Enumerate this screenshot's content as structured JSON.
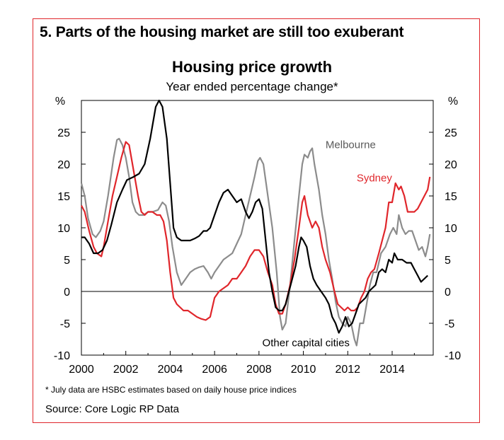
{
  "panel_title": "5. Parts of the housing market are still too exuberant",
  "footnote": "* July data are HSBC estimates based on daily house price indices",
  "source": "Source: Core Logic RP Data",
  "colors": {
    "frame": "#e0262b",
    "sydney": "#e0262b",
    "melbourne": "#8c8c8c",
    "other": "#000000"
  },
  "chart_data": {
    "type": "line",
    "title": "Housing price growth",
    "subtitle": "Year ended percentage change*",
    "y_unit_left": "%",
    "y_unit_right": "%",
    "xlim": [
      2000,
      2015.85
    ],
    "ylim": [
      -10,
      30
    ],
    "x_ticks": [
      2000,
      2002,
      2004,
      2006,
      2008,
      2010,
      2012,
      2014
    ],
    "x_tick_labels": [
      "2000",
      "2002",
      "2004",
      "2006",
      "2008",
      "2010",
      "2012",
      "2014"
    ],
    "y_ticks": [
      -10,
      -5,
      0,
      5,
      10,
      15,
      20,
      25
    ],
    "y_tick_labels": [
      "-10",
      "-5",
      "0",
      "5",
      "10",
      "15",
      "20",
      "25"
    ],
    "grid": false,
    "zero_line": true,
    "series": [
      {
        "name": "Melbourne",
        "color": "#8c8c8c",
        "points": [
          [
            2000.0,
            17
          ],
          [
            2000.15,
            15
          ],
          [
            2000.3,
            11.5
          ],
          [
            2000.5,
            9
          ],
          [
            2000.65,
            8.5
          ],
          [
            2000.85,
            9.5
          ],
          [
            2001.0,
            11
          ],
          [
            2001.2,
            15
          ],
          [
            2001.45,
            21
          ],
          [
            2001.6,
            23.8
          ],
          [
            2001.7,
            24
          ],
          [
            2001.85,
            23
          ],
          [
            2002.0,
            21
          ],
          [
            2002.15,
            18
          ],
          [
            2002.3,
            14
          ],
          [
            2002.45,
            12.5
          ],
          [
            2002.6,
            12
          ],
          [
            2002.8,
            12
          ],
          [
            2003.0,
            12.5
          ],
          [
            2003.2,
            12.5
          ],
          [
            2003.45,
            12.8
          ],
          [
            2003.65,
            14
          ],
          [
            2003.8,
            13.5
          ],
          [
            2003.95,
            11
          ],
          [
            2004.1,
            7
          ],
          [
            2004.3,
            3
          ],
          [
            2004.5,
            1
          ],
          [
            2004.7,
            2
          ],
          [
            2004.9,
            3
          ],
          [
            2005.1,
            3.5
          ],
          [
            2005.3,
            3.8
          ],
          [
            2005.5,
            4
          ],
          [
            2005.7,
            3
          ],
          [
            2005.85,
            2
          ],
          [
            2006.0,
            3
          ],
          [
            2006.2,
            4
          ],
          [
            2006.4,
            5
          ],
          [
            2006.6,
            5.5
          ],
          [
            2006.8,
            6
          ],
          [
            2007.0,
            7.5
          ],
          [
            2007.2,
            9
          ],
          [
            2007.4,
            12
          ],
          [
            2007.6,
            15
          ],
          [
            2007.8,
            18
          ],
          [
            2007.95,
            20.5
          ],
          [
            2008.05,
            21
          ],
          [
            2008.2,
            20
          ],
          [
            2008.4,
            15
          ],
          [
            2008.6,
            10
          ],
          [
            2008.8,
            3
          ],
          [
            2008.95,
            -4
          ],
          [
            2009.05,
            -6
          ],
          [
            2009.2,
            -5
          ],
          [
            2009.4,
            1
          ],
          [
            2009.6,
            8
          ],
          [
            2009.8,
            15
          ],
          [
            2009.95,
            20
          ],
          [
            2010.05,
            21.5
          ],
          [
            2010.2,
            21
          ],
          [
            2010.3,
            22
          ],
          [
            2010.4,
            22.5
          ],
          [
            2010.5,
            20
          ],
          [
            2010.7,
            16
          ],
          [
            2010.85,
            12
          ],
          [
            2011.0,
            9
          ],
          [
            2011.15,
            5
          ],
          [
            2011.3,
            2
          ],
          [
            2011.45,
            -1.5
          ],
          [
            2011.6,
            -4
          ],
          [
            2011.75,
            -5
          ],
          [
            2011.9,
            -5.5
          ],
          [
            2012.0,
            -4
          ],
          [
            2012.15,
            -5
          ],
          [
            2012.3,
            -7.5
          ],
          [
            2012.4,
            -8.5
          ],
          [
            2012.55,
            -5
          ],
          [
            2012.7,
            -5
          ],
          [
            2012.85,
            -2
          ],
          [
            2013.0,
            1
          ],
          [
            2013.15,
            3
          ],
          [
            2013.3,
            3
          ],
          [
            2013.5,
            6
          ],
          [
            2013.7,
            7
          ],
          [
            2013.9,
            9
          ],
          [
            2014.05,
            10
          ],
          [
            2014.2,
            9
          ],
          [
            2014.3,
            12
          ],
          [
            2014.45,
            10
          ],
          [
            2014.6,
            9
          ],
          [
            2014.75,
            9.5
          ],
          [
            2014.9,
            9.5
          ],
          [
            2015.05,
            8
          ],
          [
            2015.2,
            6.5
          ],
          [
            2015.35,
            7
          ],
          [
            2015.5,
            5.5
          ],
          [
            2015.6,
            7
          ],
          [
            2015.7,
            9
          ]
        ]
      },
      {
        "name": "Sydney",
        "color": "#e0262b",
        "points": [
          [
            2000.0,
            13.5
          ],
          [
            2000.15,
            12.5
          ],
          [
            2000.35,
            9.5
          ],
          [
            2000.55,
            7
          ],
          [
            2000.7,
            6
          ],
          [
            2000.9,
            5.5
          ],
          [
            2001.0,
            7
          ],
          [
            2001.2,
            11
          ],
          [
            2001.4,
            15
          ],
          [
            2001.6,
            18
          ],
          [
            2001.8,
            21
          ],
          [
            2002.0,
            23.5
          ],
          [
            2002.15,
            23
          ],
          [
            2002.35,
            19
          ],
          [
            2002.55,
            15
          ],
          [
            2002.7,
            12.5
          ],
          [
            2002.85,
            12
          ],
          [
            2003.0,
            12.5
          ],
          [
            2003.2,
            12.5
          ],
          [
            2003.4,
            12
          ],
          [
            2003.55,
            12
          ],
          [
            2003.7,
            11
          ],
          [
            2003.85,
            8
          ],
          [
            2004.0,
            3
          ],
          [
            2004.15,
            -1
          ],
          [
            2004.3,
            -2
          ],
          [
            2004.45,
            -2.5
          ],
          [
            2004.6,
            -3
          ],
          [
            2004.8,
            -3
          ],
          [
            2005.0,
            -3.5
          ],
          [
            2005.2,
            -4
          ],
          [
            2005.4,
            -4.3
          ],
          [
            2005.6,
            -4.5
          ],
          [
            2005.8,
            -4
          ],
          [
            2006.0,
            -1
          ],
          [
            2006.2,
            0
          ],
          [
            2006.4,
            0.5
          ],
          [
            2006.6,
            1
          ],
          [
            2006.8,
            2
          ],
          [
            2007.0,
            2
          ],
          [
            2007.2,
            3
          ],
          [
            2007.4,
            4
          ],
          [
            2007.6,
            5.5
          ],
          [
            2007.8,
            6.5
          ],
          [
            2008.0,
            6.5
          ],
          [
            2008.2,
            5.5
          ],
          [
            2008.4,
            3
          ],
          [
            2008.6,
            1
          ],
          [
            2008.75,
            -2
          ],
          [
            2008.9,
            -3.5
          ],
          [
            2009.05,
            -3.5
          ],
          [
            2009.2,
            -2
          ],
          [
            2009.4,
            1
          ],
          [
            2009.6,
            5
          ],
          [
            2009.8,
            10
          ],
          [
            2009.95,
            14
          ],
          [
            2010.05,
            15
          ],
          [
            2010.2,
            12
          ],
          [
            2010.4,
            10
          ],
          [
            2010.55,
            11
          ],
          [
            2010.7,
            10
          ],
          [
            2010.85,
            7
          ],
          [
            2011.0,
            5
          ],
          [
            2011.2,
            3
          ],
          [
            2011.4,
            0
          ],
          [
            2011.55,
            -2
          ],
          [
            2011.7,
            -2.5
          ],
          [
            2011.85,
            -3
          ],
          [
            2012.0,
            -2.5
          ],
          [
            2012.15,
            -3
          ],
          [
            2012.3,
            -3
          ],
          [
            2012.45,
            -2.5
          ],
          [
            2012.6,
            -1
          ],
          [
            2012.75,
            0
          ],
          [
            2012.9,
            2
          ],
          [
            2013.05,
            3
          ],
          [
            2013.2,
            3.5
          ],
          [
            2013.4,
            6
          ],
          [
            2013.55,
            8
          ],
          [
            2013.7,
            10
          ],
          [
            2013.85,
            14
          ],
          [
            2014.0,
            14
          ],
          [
            2014.15,
            17
          ],
          [
            2014.3,
            16
          ],
          [
            2014.4,
            16.5
          ],
          [
            2014.55,
            15
          ],
          [
            2014.7,
            12.5
          ],
          [
            2014.85,
            12.5
          ],
          [
            2015.0,
            12.5
          ],
          [
            2015.15,
            13
          ],
          [
            2015.3,
            14
          ],
          [
            2015.45,
            15
          ],
          [
            2015.6,
            16
          ],
          [
            2015.7,
            18
          ]
        ]
      },
      {
        "name": "Other capital cities",
        "color": "#000000",
        "points": [
          [
            2000.0,
            8.5
          ],
          [
            2000.15,
            8.5
          ],
          [
            2000.35,
            7.5
          ],
          [
            2000.55,
            6
          ],
          [
            2000.75,
            6
          ],
          [
            2000.95,
            6.5
          ],
          [
            2001.15,
            8
          ],
          [
            2001.35,
            10.5
          ],
          [
            2001.6,
            14
          ],
          [
            2001.85,
            16
          ],
          [
            2002.05,
            17.5
          ],
          [
            2002.35,
            18
          ],
          [
            2002.6,
            18.5
          ],
          [
            2002.85,
            20
          ],
          [
            2003.1,
            24
          ],
          [
            2003.35,
            29
          ],
          [
            2003.5,
            30
          ],
          [
            2003.65,
            29
          ],
          [
            2003.85,
            24
          ],
          [
            2004.0,
            17
          ],
          [
            2004.15,
            10
          ],
          [
            2004.3,
            8.5
          ],
          [
            2004.5,
            8
          ],
          [
            2004.7,
            8
          ],
          [
            2004.9,
            8
          ],
          [
            2005.1,
            8.3
          ],
          [
            2005.3,
            8.7
          ],
          [
            2005.5,
            9.5
          ],
          [
            2005.65,
            9.5
          ],
          [
            2005.8,
            10
          ],
          [
            2005.9,
            11
          ],
          [
            2006.05,
            12.5
          ],
          [
            2006.2,
            14
          ],
          [
            2006.4,
            15.5
          ],
          [
            2006.6,
            16
          ],
          [
            2006.8,
            15
          ],
          [
            2007.0,
            14
          ],
          [
            2007.2,
            14.5
          ],
          [
            2007.4,
            12.5
          ],
          [
            2007.55,
            11.5
          ],
          [
            2007.7,
            12.5
          ],
          [
            2007.85,
            14
          ],
          [
            2008.0,
            14.5
          ],
          [
            2008.15,
            13
          ],
          [
            2008.3,
            8
          ],
          [
            2008.45,
            3
          ],
          [
            2008.6,
            0
          ],
          [
            2008.75,
            -2.5
          ],
          [
            2008.9,
            -3
          ],
          [
            2009.05,
            -3
          ],
          [
            2009.2,
            -2
          ],
          [
            2009.35,
            0
          ],
          [
            2009.5,
            2
          ],
          [
            2009.65,
            4
          ],
          [
            2009.8,
            7
          ],
          [
            2009.9,
            8.5
          ],
          [
            2010.0,
            8
          ],
          [
            2010.15,
            7
          ],
          [
            2010.3,
            4
          ],
          [
            2010.45,
            2
          ],
          [
            2010.6,
            1
          ],
          [
            2010.8,
            0
          ],
          [
            2011.0,
            -1
          ],
          [
            2011.15,
            -2
          ],
          [
            2011.3,
            -4
          ],
          [
            2011.45,
            -5
          ],
          [
            2011.6,
            -6.5
          ],
          [
            2011.75,
            -5.5
          ],
          [
            2011.9,
            -4
          ],
          [
            2012.05,
            -5.5
          ],
          [
            2012.2,
            -5
          ],
          [
            2012.35,
            -3.5
          ],
          [
            2012.5,
            -2
          ],
          [
            2012.65,
            -1.5
          ],
          [
            2012.8,
            -1
          ],
          [
            2012.95,
            0
          ],
          [
            2013.1,
            0.5
          ],
          [
            2013.25,
            1
          ],
          [
            2013.4,
            3
          ],
          [
            2013.55,
            3.5
          ],
          [
            2013.7,
            3
          ],
          [
            2013.85,
            5
          ],
          [
            2014.0,
            4.5
          ],
          [
            2014.1,
            6
          ],
          [
            2014.25,
            5
          ],
          [
            2014.45,
            5
          ],
          [
            2014.65,
            4.5
          ],
          [
            2014.85,
            4.5
          ],
          [
            2015.0,
            3.5
          ],
          [
            2015.15,
            2.5
          ],
          [
            2015.3,
            1.5
          ],
          [
            2015.45,
            2
          ],
          [
            2015.6,
            2.5
          ]
        ]
      }
    ],
    "labels": [
      {
        "text": "Melbourne",
        "series": "Melbourne",
        "at": [
          2011.0,
          22.5
        ],
        "color": "#5a5a5a",
        "anchor": "start"
      },
      {
        "text": "Sydney",
        "series": "Sydney",
        "at": [
          2012.4,
          17.3
        ],
        "color": "#e0262b",
        "anchor": "start"
      },
      {
        "text": "Other capital cities",
        "series": "Other capital cities",
        "at": [
          2008.15,
          -8.6
        ],
        "color": "#000000",
        "anchor": "start"
      }
    ]
  }
}
